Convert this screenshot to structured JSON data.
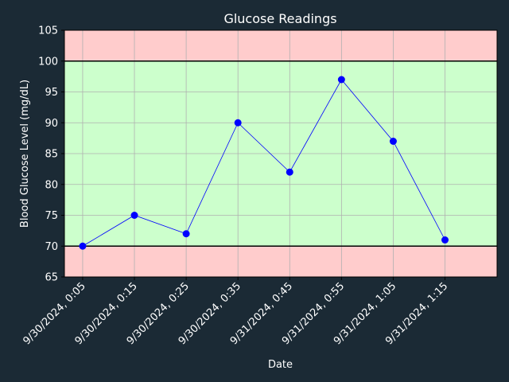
{
  "page": {
    "background": "#1b2a35"
  },
  "chart_data": {
    "type": "line",
    "title": "Glucose Readings",
    "xlabel": "Date",
    "ylabel": "Blood Glucose Level (mg/dL)",
    "ylim": [
      65,
      105
    ],
    "yticks": [
      65,
      70,
      75,
      80,
      85,
      90,
      95,
      100,
      105
    ],
    "grid": true,
    "categories": [
      "9/30/2024, 0:05",
      "9/30/2024, 0:15",
      "9/30/2024, 0:25",
      "9/30/2024, 0:35",
      "9/31/2024, 0:45",
      "9/31/2024, 0:55",
      "9/31/2024, 1:05",
      "9/31/2024, 1:15"
    ],
    "series": [
      {
        "values": [
          70,
          75,
          72,
          90,
          82,
          97,
          87,
          71
        ],
        "color": "#0000ff"
      }
    ],
    "reference_lines": [
      70,
      100
    ],
    "bands": [
      {
        "from": 65,
        "to": 70,
        "color": "#ffcccc"
      },
      {
        "from": 70,
        "to": 100,
        "color": "#ccffcc"
      },
      {
        "from": 100,
        "to": 105,
        "color": "#ffcccc"
      }
    ],
    "colors": {
      "grid": "#b0b0b0",
      "reference_line": "#000000",
      "text": "#ffffff"
    }
  }
}
